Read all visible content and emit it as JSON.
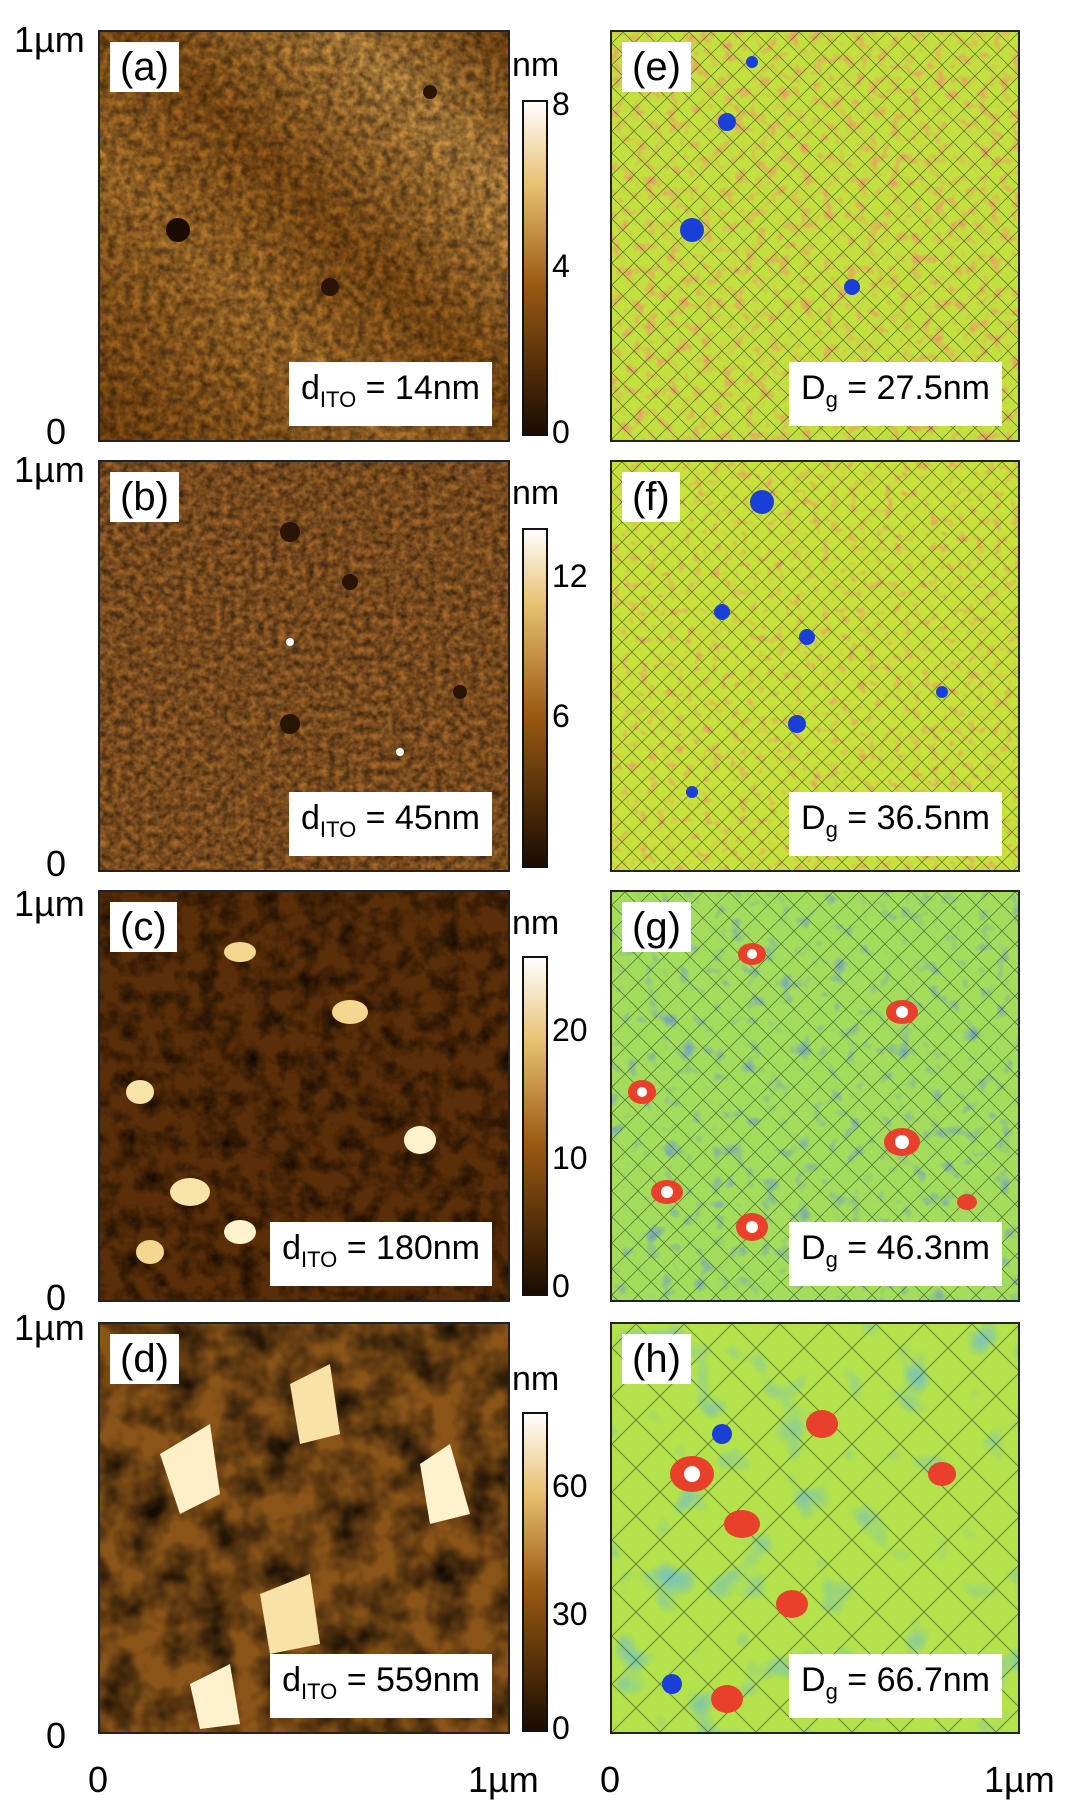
{
  "axis": {
    "y_top": "1µm",
    "y_bottom": "0",
    "x_left_a": "0",
    "x_right_a": "1µm",
    "x_left_e": "0",
    "x_right_e": "1µm"
  },
  "colorbar_unit": "nm",
  "rows": [
    {
      "height_letter": "(a)",
      "grain_letter": "(e)",
      "d_prefix": "d",
      "d_sub": "ITO",
      "d_value": " = 14nm",
      "g_prefix": "D",
      "g_sub": "g",
      "g_value": " = 27.5nm",
      "cb_ticks": [
        "8",
        "4",
        "0"
      ]
    },
    {
      "height_letter": "(b)",
      "grain_letter": "(f)",
      "d_prefix": "d",
      "d_sub": "ITO",
      "d_value": " = 45nm",
      "g_prefix": "D",
      "g_sub": "g",
      "g_value": " = 36.5nm",
      "cb_ticks": [
        "12",
        "6"
      ]
    },
    {
      "height_letter": "(c)",
      "grain_letter": "(g)",
      "d_prefix": "d",
      "d_sub": "ITO",
      "d_value": " = 180nm",
      "g_prefix": "D",
      "g_sub": "g",
      "g_value": " = 46.3nm",
      "cb_ticks": [
        "20",
        "10",
        "0"
      ]
    },
    {
      "height_letter": "(d)",
      "grain_letter": "(h)",
      "d_prefix": "d",
      "d_sub": "ITO",
      "d_value": " = 559nm",
      "g_prefix": "D",
      "g_sub": "g",
      "g_value": " = 66.7nm",
      "cb_ticks": [
        "60",
        "30",
        "0"
      ]
    }
  ],
  "colors": {
    "height_dark": "#1a0c02",
    "height_mid": "#9a5a12",
    "height_light": "#e8c070",
    "height_white": "#ffffff",
    "grain_yellow": "#e8e830",
    "grain_green": "#7fd35a",
    "grain_red": "#e8402a",
    "grain_blue": "#1a3fd8"
  }
}
